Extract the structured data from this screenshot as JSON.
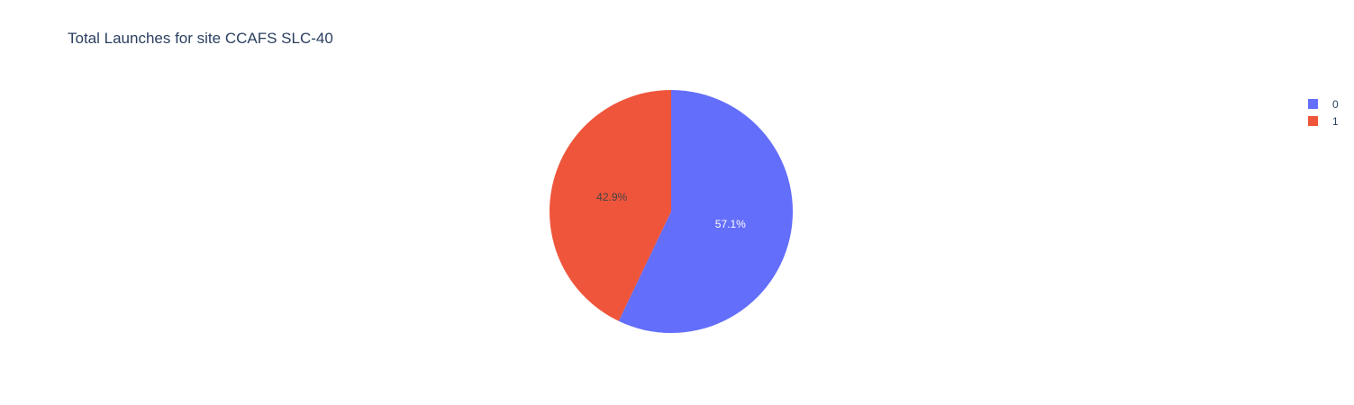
{
  "chart_data": {
    "type": "pie",
    "title": "Total Launches for site CCAFS SLC-40",
    "categories": [
      "0",
      "1"
    ],
    "values": [
      57.1,
      42.9
    ],
    "labels": [
      "57.1%",
      "42.9%"
    ],
    "colors": [
      "#636efa",
      "#ef553b"
    ],
    "label_colors": [
      "#ffffff",
      "#444444"
    ],
    "direction": "clockwise",
    "start_angle_deg": 0,
    "legend_placement": "top-right"
  },
  "legend": {
    "items": [
      {
        "label": "0",
        "color": "#636efa"
      },
      {
        "label": "1",
        "color": "#ef553b"
      }
    ]
  }
}
